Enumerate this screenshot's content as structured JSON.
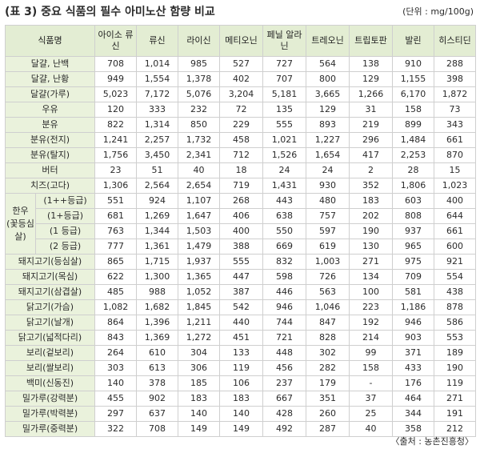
{
  "title": "(표 3) 중요 식품의 필수 아미노산 함량 비교",
  "unit": "(단위 : mg/100g)",
  "source": "〈출처 : 농촌진흥청〉",
  "table": {
    "food_header": "식품명",
    "columns": [
      "아이소 류신",
      "류신",
      "라이신",
      "메티오닌",
      "페닐 알라닌",
      "트레오닌",
      "트립토판",
      "발린",
      "히스티딘"
    ],
    "rows": [
      {
        "name": "달걀, 난백",
        "values": [
          "708",
          "1,014",
          "985",
          "527",
          "727",
          "564",
          "138",
          "910",
          "288"
        ]
      },
      {
        "name": "달걀, 난황",
        "values": [
          "949",
          "1,554",
          "1,378",
          "402",
          "707",
          "800",
          "129",
          "1,155",
          "398"
        ]
      },
      {
        "name": "달걀(가루)",
        "values": [
          "5,023",
          "7,172",
          "5,076",
          "3,204",
          "5,181",
          "3,665",
          "1,266",
          "6,170",
          "1,872"
        ]
      },
      {
        "name": "우유",
        "values": [
          "120",
          "333",
          "232",
          "72",
          "135",
          "129",
          "31",
          "158",
          "73"
        ]
      },
      {
        "name": "분유",
        "values": [
          "822",
          "1,314",
          "850",
          "229",
          "555",
          "893",
          "219",
          "899",
          "343"
        ]
      },
      {
        "name": "분유(전지)",
        "values": [
          "1,241",
          "2,257",
          "1,732",
          "458",
          "1,021",
          "1,227",
          "296",
          "1,484",
          "661"
        ]
      },
      {
        "name": "분유(탈지)",
        "values": [
          "1,756",
          "3,450",
          "2,341",
          "712",
          "1,526",
          "1,654",
          "417",
          "2,253",
          "870"
        ]
      },
      {
        "name": "버터",
        "values": [
          "23",
          "51",
          "40",
          "18",
          "24",
          "24",
          "2",
          "28",
          "15"
        ]
      },
      {
        "name": "치즈(고다)",
        "values": [
          "1,306",
          "2,564",
          "2,654",
          "719",
          "1,431",
          "930",
          "352",
          "1,806",
          "1,023"
        ]
      },
      {
        "group": "한우 (꽃등심 살)",
        "name": "(1++등급)",
        "values": [
          "551",
          "924",
          "1,107",
          "268",
          "443",
          "480",
          "183",
          "603",
          "400"
        ]
      },
      {
        "name": "(1+등급)",
        "values": [
          "681",
          "1,269",
          "1,647",
          "406",
          "638",
          "757",
          "202",
          "808",
          "644"
        ]
      },
      {
        "name": "(1 등급)",
        "values": [
          "763",
          "1,344",
          "1,503",
          "400",
          "550",
          "597",
          "190",
          "937",
          "661"
        ]
      },
      {
        "name": "(2 등급)",
        "values": [
          "777",
          "1,361",
          "1,479",
          "388",
          "669",
          "619",
          "130",
          "965",
          "600"
        ]
      },
      {
        "name": "돼지고기(등심살)",
        "values": [
          "865",
          "1,715",
          "1,937",
          "555",
          "832",
          "1,003",
          "271",
          "975",
          "921"
        ]
      },
      {
        "name": "돼지고기(목심)",
        "values": [
          "622",
          "1,300",
          "1,365",
          "447",
          "598",
          "726",
          "134",
          "709",
          "554"
        ]
      },
      {
        "name": "돼지고기(삼겹살)",
        "values": [
          "485",
          "988",
          "1,052",
          "387",
          "446",
          "563",
          "100",
          "581",
          "438"
        ]
      },
      {
        "name": "닭고기(가슴)",
        "values": [
          "1,082",
          "1,682",
          "1,845",
          "542",
          "946",
          "1,046",
          "223",
          "1,186",
          "878"
        ]
      },
      {
        "name": "닭고기(날개)",
        "values": [
          "864",
          "1,396",
          "1,211",
          "440",
          "744",
          "847",
          "192",
          "946",
          "586"
        ]
      },
      {
        "name": "닭고기(넓적다리)",
        "values": [
          "843",
          "1,369",
          "1,272",
          "451",
          "721",
          "828",
          "214",
          "903",
          "553"
        ]
      },
      {
        "name": "보리(겉보리)",
        "values": [
          "264",
          "610",
          "304",
          "133",
          "448",
          "302",
          "99",
          "371",
          "189"
        ]
      },
      {
        "name": "보리(쌀보리)",
        "values": [
          "303",
          "613",
          "306",
          "119",
          "456",
          "282",
          "158",
          "433",
          "190"
        ]
      },
      {
        "name": "백미(신동진)",
        "values": [
          "140",
          "378",
          "185",
          "106",
          "237",
          "179",
          "-",
          "176",
          "119"
        ]
      },
      {
        "name": "밀가루(강력분)",
        "values": [
          "455",
          "902",
          "183",
          "183",
          "667",
          "351",
          "37",
          "464",
          "271"
        ]
      },
      {
        "name": "밀가루(박력분)",
        "values": [
          "297",
          "637",
          "140",
          "140",
          "428",
          "260",
          "25",
          "344",
          "191"
        ]
      },
      {
        "name": "밀가루(중력분)",
        "values": [
          "322",
          "708",
          "149",
          "149",
          "492",
          "287",
          "40",
          "358",
          "212"
        ]
      }
    ]
  }
}
